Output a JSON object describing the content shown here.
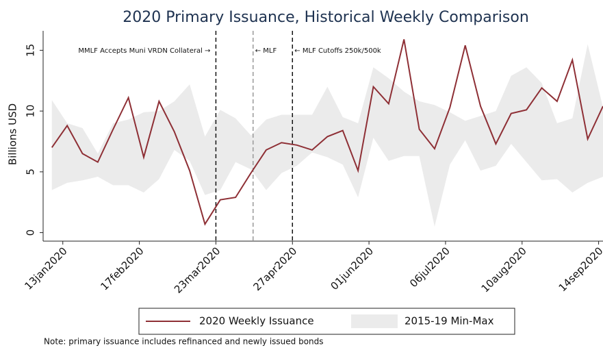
{
  "chart_data": {
    "type": "line",
    "title": "2020 Primary Issuance, Historical Weekly Comparison",
    "y_label": "Billions USD",
    "note": "Note: primary issuance includes refinanced and newly issued bonds",
    "x": [
      "2020-01-08",
      "2020-01-15",
      "2020-01-22",
      "2020-01-29",
      "2020-02-05",
      "2020-02-12",
      "2020-02-19",
      "2020-02-26",
      "2020-03-04",
      "2020-03-11",
      "2020-03-18",
      "2020-03-25",
      "2020-04-01",
      "2020-04-08",
      "2020-04-15",
      "2020-04-22",
      "2020-04-29",
      "2020-05-06",
      "2020-05-13",
      "2020-05-20",
      "2020-05-27",
      "2020-06-03",
      "2020-06-10",
      "2020-06-17",
      "2020-06-24",
      "2020-07-01",
      "2020-07-08",
      "2020-07-15",
      "2020-07-22",
      "2020-07-29",
      "2020-08-05",
      "2020-08-12",
      "2020-08-19",
      "2020-08-26",
      "2020-09-02",
      "2020-09-09",
      "2020-09-16"
    ],
    "series": [
      {
        "name": "2020 Weekly Issuance",
        "color": "#8e2f35",
        "values": [
          7.0,
          8.8,
          6.5,
          5.8,
          8.5,
          11.1,
          6.2,
          10.8,
          8.3,
          5.1,
          0.7,
          2.7,
          2.9,
          4.9,
          6.8,
          7.4,
          7.2,
          6.8,
          7.9,
          8.4,
          5.1,
          12.0,
          10.6,
          15.9,
          8.5,
          6.9,
          10.3,
          15.4,
          10.4,
          7.3,
          9.8,
          10.1,
          11.9,
          10.8,
          14.2,
          7.7,
          10.4
        ]
      },
      {
        "name": "2015-19 Min-Max",
        "color": "#ebebeb",
        "upper": [
          10.9,
          9.0,
          8.6,
          6.5,
          9.0,
          9.3,
          9.9,
          10.0,
          10.8,
          12.2,
          7.9,
          10.1,
          9.4,
          8.0,
          9.3,
          9.7,
          9.7,
          9.7,
          12.0,
          9.5,
          9.0,
          13.6,
          12.7,
          11.6,
          10.8,
          10.5,
          9.9,
          9.2,
          9.6,
          10.0,
          12.9,
          13.6,
          12.3,
          9.0,
          9.4,
          15.5,
          10.3
        ],
        "lower": [
          3.5,
          4.1,
          4.3,
          4.6,
          3.9,
          3.9,
          3.3,
          4.4,
          6.8,
          5.9,
          3.1,
          3.5,
          5.8,
          5.2,
          3.5,
          4.9,
          5.5,
          6.6,
          6.2,
          5.6,
          2.9,
          7.8,
          5.9,
          6.3,
          6.3,
          0.5,
          5.6,
          7.6,
          5.1,
          5.5,
          7.3,
          5.8,
          4.3,
          4.4,
          3.3,
          4.1,
          4.6
        ]
      }
    ],
    "xlim": [
      "2020-01-04",
      "2020-09-16"
    ],
    "xticks": [
      {
        "value": "2020-01-13",
        "label": "13jan2020"
      },
      {
        "value": "2020-02-17",
        "label": "17feb2020"
      },
      {
        "value": "2020-03-23",
        "label": "23mar2020"
      },
      {
        "value": "2020-04-27",
        "label": "27apr2020"
      },
      {
        "value": "2020-06-01",
        "label": "01jun2020"
      },
      {
        "value": "2020-07-06",
        "label": "06jul2020"
      },
      {
        "value": "2020-08-10",
        "label": "10aug2020"
      },
      {
        "value": "2020-09-14",
        "label": "14sep2020"
      }
    ],
    "ylim": [
      -0.7,
      16.6
    ],
    "yticks": [
      0,
      5,
      10,
      15
    ],
    "vlines": [
      {
        "x": "2020-03-23",
        "label": "MMLF Accepts Muni VRDN Collateral →",
        "color": "#111111",
        "side": "left"
      },
      {
        "x": "2020-04-09",
        "label": "← MLF",
        "color": "#999999",
        "side": "right"
      },
      {
        "x": "2020-04-27",
        "label": "← MLF Cutoffs 250k/500k",
        "color": "#111111",
        "side": "right"
      }
    ]
  }
}
